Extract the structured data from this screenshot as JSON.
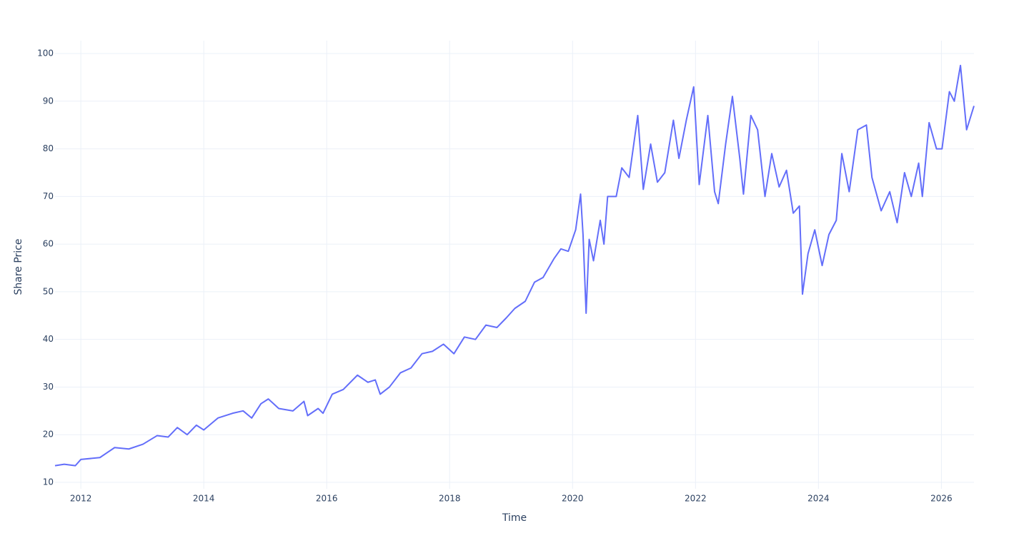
{
  "chart_data": {
    "type": "line",
    "x_label": "Time",
    "y_label": "Share Price",
    "x": [
      2011.58,
      2011.73,
      2011.91,
      2012.0,
      2012.31,
      2012.55,
      2012.78,
      2013.01,
      2013.24,
      2013.42,
      2013.57,
      2013.73,
      2013.88,
      2014.0,
      2014.23,
      2014.47,
      2014.64,
      2014.78,
      2014.93,
      2015.05,
      2015.22,
      2015.45,
      2015.63,
      2015.69,
      2015.86,
      2015.94,
      2016.09,
      2016.27,
      2016.5,
      2016.67,
      2016.79,
      2016.87,
      2017.02,
      2017.2,
      2017.37,
      2017.55,
      2017.72,
      2017.9,
      2018.07,
      2018.24,
      2018.42,
      2018.59,
      2018.77,
      2018.92,
      2019.06,
      2019.23,
      2019.38,
      2019.52,
      2019.7,
      2019.81,
      2019.93,
      2020.05,
      2020.13,
      2020.17,
      2020.22,
      2020.27,
      2020.34,
      2020.45,
      2020.51,
      2020.57,
      2020.71,
      2020.8,
      2020.92,
      2021.06,
      2021.15,
      2021.27,
      2021.38,
      2021.5,
      2021.64,
      2021.73,
      2021.85,
      2021.97,
      2022.06,
      2022.2,
      2022.31,
      2022.37,
      2022.49,
      2022.6,
      2022.72,
      2022.78,
      2022.9,
      2023.01,
      2023.13,
      2023.24,
      2023.36,
      2023.48,
      2023.59,
      2023.69,
      2023.74,
      2023.83,
      2023.94,
      2024.06,
      2024.17,
      2024.29,
      2024.38,
      2024.5,
      2024.64,
      2024.78,
      2024.87,
      2025.02,
      2025.16,
      2025.28,
      2025.4,
      2025.51,
      2025.63,
      2025.69,
      2025.8,
      2025.92,
      2026.01,
      2026.13,
      2026.21,
      2026.31,
      2026.41,
      2026.53
    ],
    "series": [
      {
        "name": "Share Price",
        "color": "#636efa",
        "values": [
          13.5,
          13.8,
          13.5,
          14.8,
          15.2,
          17.3,
          17.0,
          18.0,
          19.8,
          19.5,
          21.5,
          20.0,
          22.0,
          21.0,
          23.5,
          24.5,
          25.0,
          23.5,
          26.5,
          27.5,
          25.5,
          25.0,
          27.0,
          24.0,
          25.5,
          24.5,
          28.5,
          29.5,
          32.5,
          31.0,
          31.5,
          28.5,
          30.0,
          33.0,
          34.0,
          37.0,
          37.5,
          39.0,
          37.0,
          40.5,
          40.0,
          43.0,
          42.5,
          44.5,
          46.5,
          48.0,
          52.0,
          53.0,
          57.0,
          59.0,
          58.5,
          63.0,
          70.5,
          62.0,
          45.5,
          61.0,
          56.5,
          65.0,
          60.0,
          70.0,
          70.0,
          76.0,
          74.0,
          87.0,
          71.5,
          81.0,
          73.0,
          75.0,
          86.0,
          78.0,
          86.0,
          93.0,
          72.5,
          87.0,
          71.0,
          68.5,
          81.0,
          91.0,
          78.0,
          70.5,
          87.0,
          84.0,
          70.0,
          79.0,
          72.0,
          75.5,
          66.5,
          68.0,
          49.5,
          58.0,
          63.0,
          55.5,
          62.0,
          65.0,
          79.0,
          71.0,
          84.0,
          85.0,
          74.0,
          67.0,
          71.0,
          64.5,
          75.0,
          70.0,
          77.0,
          70.0,
          85.5,
          80.0,
          80.0,
          92.0,
          90.0,
          97.5,
          84.0,
          89.0
        ]
      }
    ],
    "xlim": [
      2011.58,
      2026.53
    ],
    "xticks": [
      2012,
      2014,
      2016,
      2018,
      2020,
      2022,
      2024,
      2026
    ],
    "ylim": [
      8.65,
      102.7
    ],
    "yticks": [
      10,
      20,
      30,
      40,
      50,
      60,
      70,
      80,
      90,
      100
    ],
    "grid": true
  }
}
